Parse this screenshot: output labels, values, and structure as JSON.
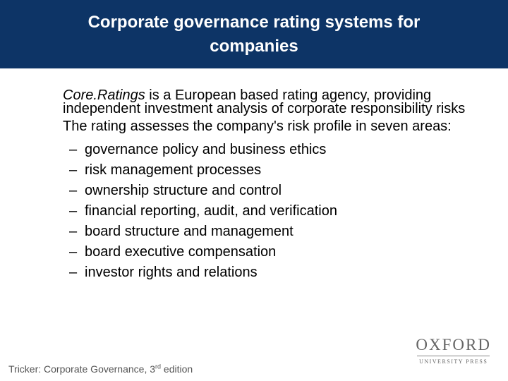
{
  "slide": {
    "title": "Corporate governance rating systems for companies",
    "intro": {
      "brand": "Core.Ratings",
      "rest": " is a European based rating agency, providing independent investment analysis of corporate responsibility risks"
    },
    "lead": "The rating assesses the company's risk profile in seven areas:",
    "areas": [
      "governance policy and business ethics",
      "risk management processes",
      "ownership structure and control",
      "financial reporting, audit, and verification",
      "board structure and management",
      "board executive compensation",
      "investor rights and relations"
    ],
    "dash": "–"
  },
  "footer": {
    "source": "Tricker: Corporate Governance, 3",
    "superscript": "rd",
    "suffix": " edition"
  },
  "logo": {
    "name": "OXFORD",
    "subtitle": "UNIVERSITY PRESS"
  },
  "colors": {
    "title_bar": "#0d3466",
    "title_text": "#ffffff"
  }
}
